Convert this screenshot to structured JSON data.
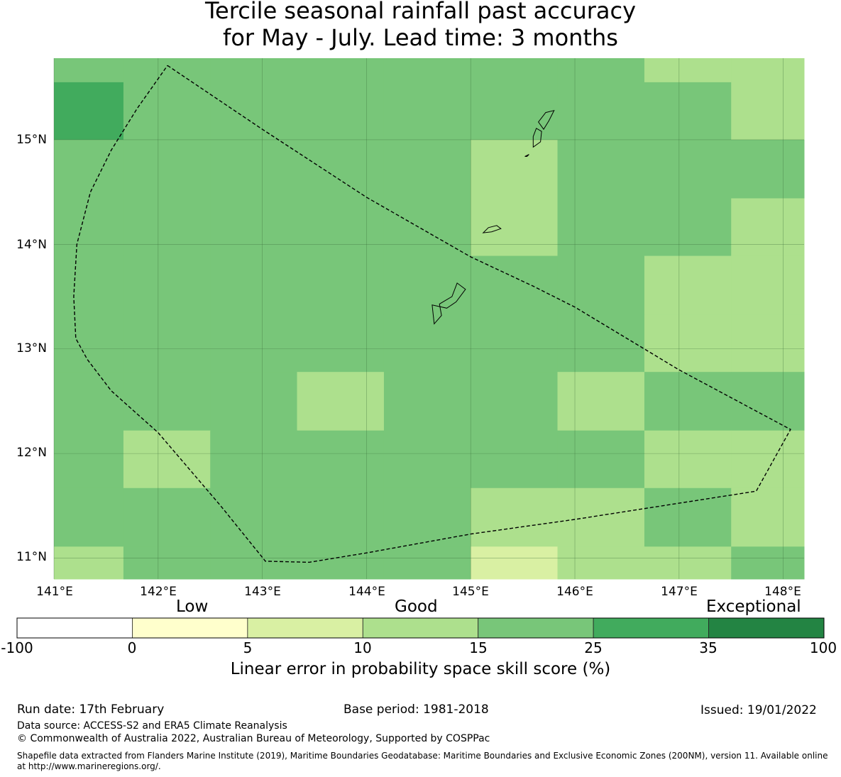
{
  "title_line1": "Tercile seasonal rainfall past accuracy",
  "title_line2": "for May - July. Lead time: 3 months",
  "map": {
    "lon_range": [
      141.0,
      148.2
    ],
    "lat_range": [
      10.8,
      15.78
    ],
    "lon_ticks": [
      "141°E",
      "142°E",
      "143°E",
      "144°E",
      "145°E",
      "146°E",
      "147°E",
      "148°E"
    ],
    "lat_ticks": [
      "15°N",
      "14°N",
      "13°N",
      "12°N",
      "11°N"
    ],
    "lon_tick_values": [
      141,
      142,
      143,
      144,
      145,
      146,
      147,
      148
    ],
    "lat_tick_values": [
      15,
      14,
      13,
      12,
      11
    ],
    "colors": {
      "A": "#ade08d",
      "B": "#78c679",
      "C": "#41ab5d",
      "D": "#d9f0a3"
    },
    "cell_lon_edges": [
      141.0,
      141.667,
      142.5,
      143.333,
      144.167,
      145.0,
      145.833,
      146.667,
      147.5,
      148.2
    ],
    "cell_lat_edges": [
      15.78,
      15.55,
      15.0,
      14.44,
      13.89,
      13.33,
      12.78,
      12.22,
      11.67,
      11.11,
      10.8
    ],
    "grid": [
      [
        "B",
        "B",
        "B",
        "B",
        "B",
        "B",
        "B",
        "A",
        "A"
      ],
      [
        "C",
        "B",
        "B",
        "B",
        "B",
        "B",
        "B",
        "B",
        "A"
      ],
      [
        "B",
        "B",
        "B",
        "B",
        "B",
        "A",
        "B",
        "B",
        "B"
      ],
      [
        "B",
        "B",
        "B",
        "B",
        "B",
        "A",
        "B",
        "B",
        "A"
      ],
      [
        "B",
        "B",
        "B",
        "B",
        "B",
        "B",
        "B",
        "A",
        "A"
      ],
      [
        "B",
        "B",
        "B",
        "B",
        "B",
        "B",
        "B",
        "A",
        "A"
      ],
      [
        "B",
        "B",
        "B",
        "A",
        "B",
        "B",
        "A",
        "B",
        "B"
      ],
      [
        "B",
        "A",
        "B",
        "B",
        "B",
        "B",
        "B",
        "A",
        "A"
      ],
      [
        "B",
        "B",
        "B",
        "B",
        "B",
        "A",
        "A",
        "B",
        "A"
      ],
      [
        "A",
        "B",
        "B",
        "B",
        "B",
        "D",
        "A",
        "A",
        "B"
      ]
    ],
    "eez_boundary": [
      [
        142.09,
        15.71
      ],
      [
        143.0,
        15.1
      ],
      [
        144.0,
        14.45
      ],
      [
        145.0,
        13.88
      ],
      [
        145.6,
        13.6
      ],
      [
        146.0,
        13.4
      ],
      [
        147.0,
        12.8
      ],
      [
        148.07,
        12.23
      ],
      [
        147.74,
        11.64
      ],
      [
        146.0,
        11.37
      ],
      [
        145.0,
        11.23
      ],
      [
        144.0,
        11.05
      ],
      [
        143.45,
        10.96
      ],
      [
        143.03,
        10.97
      ],
      [
        142.6,
        11.5
      ],
      [
        142.0,
        12.2
      ],
      [
        141.55,
        12.6
      ],
      [
        141.32,
        12.9
      ],
      [
        141.21,
        13.1
      ],
      [
        141.19,
        13.5
      ],
      [
        141.22,
        14.0
      ],
      [
        141.35,
        14.5
      ],
      [
        141.55,
        14.9
      ],
      [
        141.8,
        15.3
      ],
      [
        142.09,
        15.71
      ]
    ],
    "islands": [
      [
        [
          144.65,
          13.24
        ],
        [
          144.72,
          13.32
        ],
        [
          144.7,
          13.43
        ],
        [
          144.82,
          13.5
        ],
        [
          144.87,
          13.63
        ],
        [
          144.95,
          13.57
        ],
        [
          144.86,
          13.45
        ],
        [
          144.77,
          13.39
        ],
        [
          144.63,
          13.42
        ],
        [
          144.65,
          13.24
        ]
      ],
      [
        [
          145.12,
          14.11
        ],
        [
          145.17,
          14.16
        ],
        [
          145.25,
          14.18
        ],
        [
          145.29,
          14.15
        ],
        [
          145.2,
          14.12
        ],
        [
          145.12,
          14.11
        ]
      ],
      [
        [
          145.6,
          14.93
        ],
        [
          145.67,
          14.98
        ],
        [
          145.68,
          15.08
        ],
        [
          145.63,
          15.11
        ],
        [
          145.6,
          15.03
        ],
        [
          145.6,
          14.93
        ]
      ],
      [
        [
          145.65,
          15.17
        ],
        [
          145.72,
          15.26
        ],
        [
          145.8,
          15.28
        ],
        [
          145.75,
          15.18
        ],
        [
          145.7,
          15.1
        ],
        [
          145.65,
          15.17
        ]
      ],
      [
        [
          145.52,
          14.84
        ],
        [
          145.56,
          14.86
        ],
        [
          145.54,
          14.84
        ],
        [
          145.52,
          14.84
        ]
      ]
    ]
  },
  "categories": {
    "low": "Low",
    "good": "Good",
    "exceptional": "Exceptional"
  },
  "colorbar": {
    "ticks": [
      "-100",
      "0",
      "5",
      "10",
      "15",
      "25",
      "35",
      "100"
    ],
    "colors": [
      "#ffffff",
      "#ffffcc",
      "#d9f0a3",
      "#ade08d",
      "#78c679",
      "#41ab5d",
      "#238443"
    ],
    "label": "Linear error in probability space skill score (%)"
  },
  "footer": {
    "run_date": "Run date: 17th February",
    "base_period": "Base period: 1981-2018",
    "issued": "Issued: 19/01/2022",
    "data_source": "Data source: ACCESS-S2 and ERA5 Climate Reanalysis",
    "copyright": "© Commonwealth of Australia 2022, Australian Bureau of Meteorology, Supported by COSPPac",
    "shapefile_line1": "Shapefile data extracted from Flanders Marine Institute (2019), Maritime Boundaries Geodatabase: Maritime Boundaries and Exclusive Economic Zones (200NM), version 11. Available online",
    "shapefile_line2": "at http://www.marineregions.org/."
  }
}
